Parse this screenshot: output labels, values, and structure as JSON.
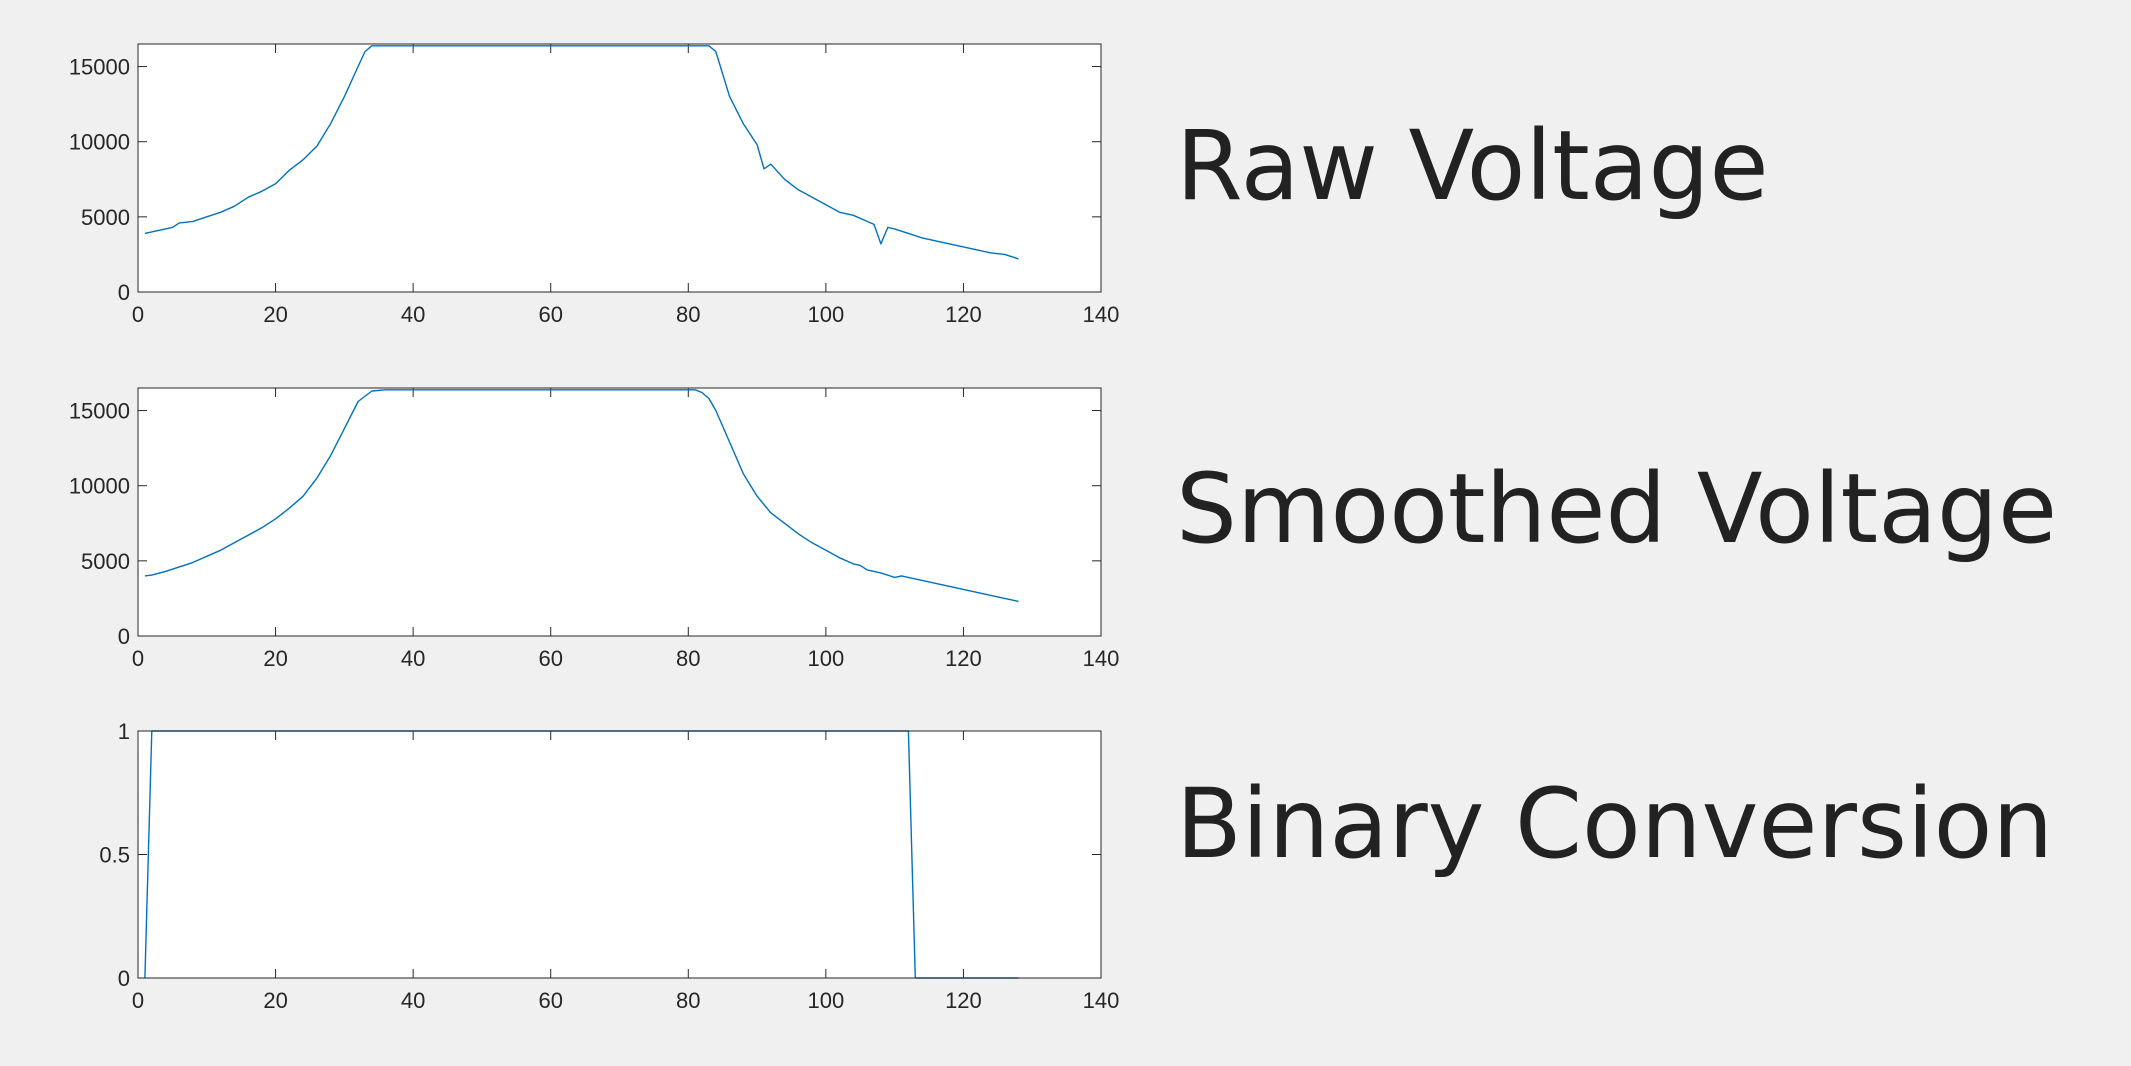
{
  "labels": {
    "raw": "Raw Voltage",
    "smoothed": "Smoothed Voltage",
    "binary": "Binary Conversion"
  },
  "colors": {
    "line": "#0072bd",
    "axes": "#262626",
    "plot_bg": "#ffffff",
    "figure_bg": "#f0f0f0"
  },
  "chart_data": [
    {
      "type": "line",
      "xlim": [
        0,
        140
      ],
      "ylim": [
        0,
        16500
      ],
      "xticks": [
        0,
        20,
        40,
        60,
        80,
        100,
        120,
        140
      ],
      "yticks": [
        0,
        5000,
        10000,
        15000
      ],
      "grid": false,
      "series": [
        {
          "x": [
            1,
            3,
            5,
            6,
            8,
            10,
            12,
            14,
            16,
            18,
            20,
            22,
            24,
            26,
            28,
            30,
            32,
            33,
            34,
            36,
            40,
            50,
            60,
            70,
            80,
            83,
            84,
            85,
            86,
            88,
            90,
            91,
            92,
            94,
            96,
            98,
            100,
            102,
            104,
            106,
            107,
            108,
            109,
            110,
            112,
            114,
            116,
            118,
            120,
            122,
            124,
            126,
            128
          ],
          "y": [
            3900,
            4100,
            4300,
            4600,
            4700,
            5000,
            5300,
            5700,
            6300,
            6700,
            7200,
            8100,
            8800,
            9700,
            11200,
            13000,
            15000,
            16000,
            16383,
            16383,
            16383,
            16383,
            16383,
            16383,
            16383,
            16383,
            16000,
            14500,
            13000,
            11200,
            9800,
            8200,
            8500,
            7500,
            6800,
            6300,
            5800,
            5300,
            5100,
            4700,
            4500,
            3200,
            4300,
            4200,
            3900,
            3600,
            3400,
            3200,
            3000,
            2800,
            2600,
            2500,
            2200
          ]
        }
      ]
    },
    {
      "type": "line",
      "xlim": [
        0,
        140
      ],
      "ylim": [
        0,
        16500
      ],
      "xticks": [
        0,
        20,
        40,
        60,
        80,
        100,
        120,
        140
      ],
      "yticks": [
        0,
        5000,
        10000,
        15000
      ],
      "grid": false,
      "series": [
        {
          "x": [
            1,
            2,
            4,
            6,
            8,
            10,
            12,
            14,
            16,
            18,
            20,
            22,
            24,
            26,
            28,
            30,
            32,
            34,
            36,
            40,
            50,
            60,
            70,
            80,
            81,
            82,
            83,
            84,
            86,
            88,
            90,
            92,
            94,
            96,
            98,
            100,
            102,
            104,
            105,
            106,
            108,
            110,
            111,
            112,
            114,
            116,
            118,
            120,
            122,
            124,
            126,
            128
          ],
          "y": [
            4000,
            4050,
            4300,
            4600,
            4900,
            5300,
            5700,
            6200,
            6700,
            7200,
            7800,
            8500,
            9300,
            10500,
            12000,
            13800,
            15600,
            16300,
            16383,
            16383,
            16383,
            16383,
            16383,
            16383,
            16383,
            16200,
            15800,
            15000,
            12900,
            10800,
            9300,
            8200,
            7500,
            6800,
            6200,
            5700,
            5200,
            4800,
            4700,
            4400,
            4200,
            3900,
            4000,
            3900,
            3700,
            3500,
            3300,
            3100,
            2900,
            2700,
            2500,
            2300
          ]
        }
      ]
    },
    {
      "type": "line",
      "xlim": [
        0,
        140
      ],
      "ylim": [
        0,
        1
      ],
      "xticks": [
        0,
        20,
        40,
        60,
        80,
        100,
        120,
        140
      ],
      "yticks": [
        0,
        0.5,
        1
      ],
      "grid": false,
      "series": [
        {
          "x": [
            1,
            2,
            112,
            113,
            128
          ],
          "y": [
            0,
            1,
            1,
            0,
            0
          ]
        }
      ]
    }
  ]
}
